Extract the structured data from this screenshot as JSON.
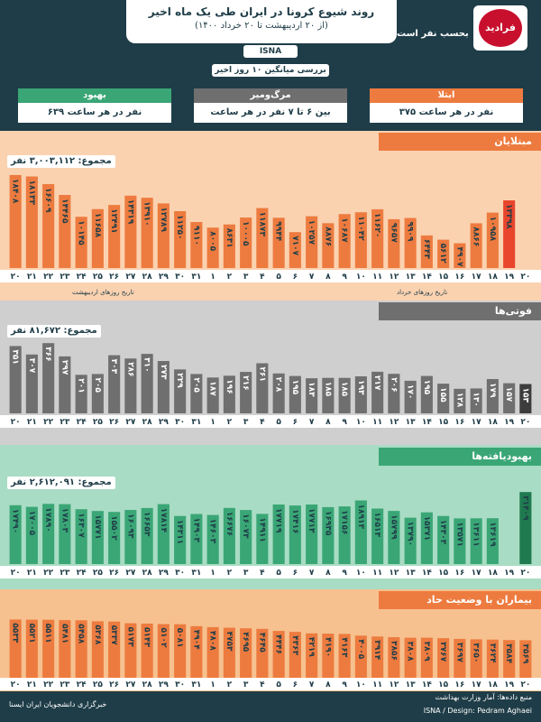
{
  "header": {
    "title": "روند شیوع کرونا در ایران طی یک ماه اخیر",
    "period": "(از ۲۰ اردیبهشت تا ۲۰ خرداد ۱۴۰۰)",
    "source_tag": "ISNA",
    "subtitle": "بحسب نفر است",
    "logo_text": "فرادید",
    "avg_label": "بررسی میانگین ۱۰ روز اخیر"
  },
  "stats": [
    {
      "label": "بهبود",
      "value": "۶۳۹ نفر در هر ساعت"
    },
    {
      "label": "مرگ‌ومیر",
      "value": "بین ۶ تا ۷ نفر در هر ساعت"
    },
    {
      "label": "ابتلا",
      "value": "۳۷۵ نفر در هر ساعت"
    }
  ],
  "colors": {
    "header_bg": "#1f3d48",
    "infected": "#ed7b3f",
    "infected_bg": "#fbd2b0",
    "deaths": "#6f6f6f",
    "deaths_bg": "#cfcfcf",
    "recovered": "#3aa676",
    "recovered_bg": "#a9dcc4",
    "severe": "#ed7b3f",
    "severe_bg": "#f6c18f",
    "highlight": "#e8452c"
  },
  "footer": {
    "source": "منبع داده‌ها: آمار وزارت بهداشت",
    "credit": "ISNA / Design: Pedram Aghaei",
    "watermark": "خبرگزاری دانشجویان ایران ایسنا"
  },
  "chart_data": [
    {
      "type": "bar",
      "title": "مبتلایان",
      "total": "مجموع: ۳,۰۰۳,۱۱۲ نفر",
      "x_caption_left": "تاریخ روزهای اردیبهشت",
      "x_caption_right": "تاریخ روزهای خرداد",
      "categories": [
        "۲۰",
        "۲۱",
        "۲۲",
        "۲۳",
        "۲۴",
        "۲۵",
        "۲۶",
        "۲۷",
        "۲۸",
        "۲۹",
        "۳۰",
        "۳۱",
        "۱",
        "۲",
        "۳",
        "۴",
        "۵",
        "۶",
        "۷",
        "۸",
        "۹",
        "۱۰",
        "۱۱",
        "۱۲",
        "۱۳",
        "۱۴",
        "۱۵",
        "۱۶",
        "۱۷",
        "۱۸",
        "۱۹",
        "۲۰"
      ],
      "values": [
        18408,
        18133,
        16609,
        14465,
        10145,
        11658,
        12491,
        14319,
        13910,
        12789,
        11250,
        9110,
        8005,
        8631,
        10005,
        11873,
        9944,
        7107,
        10257,
        8876,
        10687,
        11042,
        11620,
        9657,
        9909,
        6443,
        5612,
        4907,
        8866,
        10958,
        13398,
        0
      ],
      "labels": [
        "۱۸۴۰۸",
        "۱۸۱۳۳",
        "۱۶۶۰۹",
        "۱۴۴۶۵",
        "۱۰۱۴۵",
        "۱۱۶۵۸",
        "۱۲۴۹۱",
        "۱۴۳۱۹",
        "۱۳۹۱۰",
        "۱۲۷۸۹",
        "۱۱۲۵۰",
        "۹۱۱۰",
        "۸۰۰۵",
        "۸۶۳۱",
        "۱۰۰۰۵",
        "۱۱۸۷۳",
        "۹۹۴۴",
        "۷۱۰۷",
        "۱۰۲۵۷",
        "۸۸۷۶",
        "۱۰۶۸۷",
        "۱۱۰۴۲",
        "۱۱۶۲۰",
        "۹۶۵۷",
        "۹۹۰۹",
        "۶۴۴۳",
        "۵۶۱۲",
        "۴۹۰۷",
        "۸۸۶۶",
        "۱۰۹۵۸",
        "۱۳۳۹۸",
        ""
      ],
      "ylim": [
        0,
        20000
      ]
    },
    {
      "type": "bar",
      "title": "فوتی‌ها",
      "total": "مجموع: ۸۱,۶۷۲ نفر",
      "categories": [
        "۲۰",
        "۲۱",
        "۲۲",
        "۲۳",
        "۲۴",
        "۲۵",
        "۲۶",
        "۲۷",
        "۲۸",
        "۲۹",
        "۳۰",
        "۳۱",
        "۱",
        "۲",
        "۳",
        "۴",
        "۵",
        "۶",
        "۷",
        "۸",
        "۹",
        "۱۰",
        "۱۱",
        "۱۲",
        "۱۳",
        "۱۴",
        "۱۵",
        "۱۶",
        "۱۷",
        "۱۸",
        "۱۹",
        "۲۰"
      ],
      "values": [
        351,
        307,
        366,
        297,
        201,
        205,
        303,
        286,
        310,
        273,
        229,
        205,
        187,
        196,
        216,
        261,
        208,
        195,
        183,
        185,
        185,
        193,
        217,
        206,
        170,
        195,
        155,
        128,
        130,
        179,
        157,
        153
      ],
      "labels": [
        "۳۵۱",
        "۳۰۷",
        "۳۶۶",
        "۲۹۷",
        "۲۰۱",
        "۲۰۵",
        "۳۰۳",
        "۲۸۶",
        "۳۱۰",
        "۲۷۳",
        "۲۲۹",
        "۲۰۵",
        "۱۸۷",
        "۱۹۶",
        "۲۱۶",
        "۲۶۱",
        "۲۰۸",
        "۱۹۵",
        "۱۸۳",
        "۱۸۵",
        "۱۸۵",
        "۱۹۳",
        "۲۱۷",
        "۲۰۶",
        "۱۷۰",
        "۱۹۵",
        "۱۵۵",
        "۱۲۸",
        "۱۳۰",
        "۱۷۹",
        "۱۵۷",
        "۱۵۳"
      ],
      "ylim": [
        0,
        400
      ]
    },
    {
      "type": "bar",
      "title": "بهبودیافته‌ها",
      "total": "مجموع: ۲,۶۱۲,۰۹۱ نفر",
      "categories": [
        "۲۰",
        "۲۱",
        "۲۲",
        "۲۳",
        "۲۴",
        "۲۵",
        "۲۶",
        "۲۷",
        "۲۸",
        "۲۹",
        "۳۰",
        "۳۱",
        "۱",
        "۲",
        "۳",
        "۴",
        "۵",
        "۶",
        "۷",
        "۸",
        "۹",
        "۱۰",
        "۱۱",
        "۱۲",
        "۱۳",
        "۱۴",
        "۱۵",
        "۱۶",
        "۱۷",
        "۱۸",
        "۱۹",
        "۲۰"
      ],
      "values": [
        17490,
        17005,
        17890,
        17803,
        16307,
        15771,
        15502,
        16093,
        16653,
        17814,
        14311,
        14903,
        14603,
        16676,
        16073,
        14911,
        17719,
        17416,
        17713,
        16935,
        17156,
        18913,
        16513,
        15799,
        13790,
        15371,
        14303,
        13571,
        13611,
        13619,
        0,
        21409
      ],
      "labels": [
        "۱۷۴۹۰",
        "۱۷۰۰۵",
        "۱۷۸۹۰",
        "۱۷۸۰۳",
        "۱۶۳۰۷",
        "۱۵۷۷۱",
        "۱۵۵۰۲",
        "۱۶۰۹۳",
        "۱۶۶۵۳",
        "۱۷۸۱۴",
        "۱۴۳۱۱",
        "۱۴۹۰۳",
        "۱۴۶۰۳",
        "۱۶۶۷۶",
        "۱۶۰۷۳",
        "۱۴۹۱۱",
        "۱۷۷۱۹",
        "۱۷۴۱۶",
        "۱۷۷۱۳",
        "۱۶۹۳۵",
        "۱۷۱۵۶",
        "۱۸۹۱۳",
        "۱۶۵۱۳",
        "۱۵۷۹۹",
        "۱۳۷۹۰",
        "۱۵۳۷۱",
        "۱۴۳۰۳",
        "۱۳۵۷۱",
        "۱۳۶۱۱",
        "۱۳۶۱۹",
        "",
        "۲۱۴۰۹"
      ],
      "ylim": [
        0,
        22000
      ]
    },
    {
      "type": "bar",
      "title": "بیماران با وضعیت حاد",
      "categories": [
        "۲۰",
        "۲۱",
        "۲۲",
        "۲۳",
        "۲۴",
        "۲۵",
        "۲۶",
        "۲۷",
        "۲۸",
        "۲۹",
        "۳۰",
        "۳۱",
        "۱",
        "۲",
        "۳",
        "۴",
        "۵",
        "۶",
        "۷",
        "۸",
        "۹",
        "۱۰",
        "۱۱",
        "۱۲",
        "۱۳",
        "۱۴",
        "۱۵",
        "۱۶",
        "۱۷",
        "۱۸",
        "۱۹",
        "۲۰"
      ],
      "values": [
        5533,
        5521,
        5511,
        5481,
        5458,
        5368,
        5337,
        5173,
        5143,
        5102,
        5081,
        4904,
        4808,
        4753,
        4695,
        4645,
        4446,
        4363,
        4219,
        4190,
        4163,
        4005,
        3914,
        3856,
        3808,
        3809,
        3767,
        3697,
        3650,
        3624,
        3584,
        3569
      ],
      "labels": [
        "۵۵۳۳",
        "۵۵۲۱",
        "۵۵۱۱",
        "۵۴۸۱",
        "۵۴۵۸",
        "۵۳۶۸",
        "۵۳۳۷",
        "۵۱۷۳",
        "۵۱۴۳",
        "۵۱۰۲",
        "۵۰۸۱",
        "۴۹۰۴",
        "۴۸۰۸",
        "۴۷۵۳",
        "۴۶۹۵",
        "۴۶۴۵",
        "۴۴۴۶",
        "۴۳۶۳",
        "۴۲۱۹",
        "۴۱۹۰",
        "۴۱۶۳",
        "۴۰۰۵",
        "۳۹۱۴",
        "۳۸۵۶",
        "۳۸۰۸",
        "۳۸۰۹",
        "۳۷۶۷",
        "۳۶۹۷",
        "۳۶۵۰",
        "۳۶۲۴",
        "۳۵۸۴",
        "۳۵۶۹"
      ],
      "ylim": [
        0,
        6000
      ]
    }
  ]
}
